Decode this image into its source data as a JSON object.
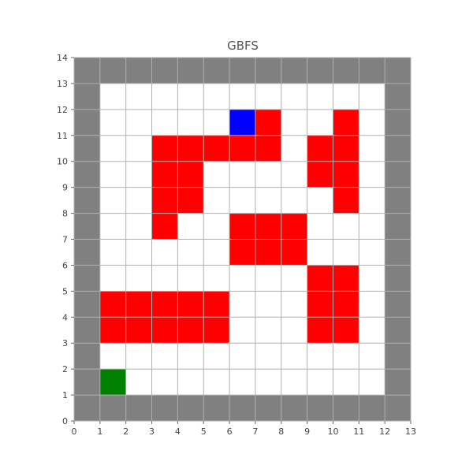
{
  "title": "GBFS",
  "grid": {
    "width": 13,
    "height": 14
  },
  "axes": {
    "x_ticks": [
      "0",
      "1",
      "2",
      "3",
      "4",
      "5",
      "6",
      "7",
      "8",
      "9",
      "10",
      "11",
      "12",
      "13"
    ],
    "y_ticks": [
      "0",
      "1",
      "2",
      "3",
      "4",
      "5",
      "6",
      "7",
      "8",
      "9",
      "10",
      "11",
      "12",
      "13",
      "14"
    ]
  },
  "colors": {
    "background": "#ffffff",
    "free": "#ffffff",
    "wall": "#808080",
    "explored": "#ff0000",
    "start": "#008000",
    "goal": "#0000ff",
    "gridline": "#b0b0b0"
  },
  "cells": {
    "start": [
      1,
      1
    ],
    "goal": [
      6,
      11
    ],
    "explored": [
      [
        1,
        3
      ],
      [
        2,
        3
      ],
      [
        3,
        3
      ],
      [
        4,
        3
      ],
      [
        5,
        3
      ],
      [
        1,
        4
      ],
      [
        2,
        4
      ],
      [
        3,
        4
      ],
      [
        4,
        4
      ],
      [
        5,
        4
      ],
      [
        9,
        3
      ],
      [
        10,
        3
      ],
      [
        9,
        4
      ],
      [
        10,
        4
      ],
      [
        9,
        5
      ],
      [
        10,
        5
      ],
      [
        6,
        6
      ],
      [
        7,
        6
      ],
      [
        8,
        6
      ],
      [
        6,
        7
      ],
      [
        7,
        7
      ],
      [
        8,
        7
      ],
      [
        3,
        7
      ],
      [
        3,
        8
      ],
      [
        4,
        8
      ],
      [
        3,
        9
      ],
      [
        4,
        9
      ],
      [
        3,
        10
      ],
      [
        4,
        10
      ],
      [
        5,
        10
      ],
      [
        6,
        10
      ],
      [
        7,
        10
      ],
      [
        9,
        9
      ],
      [
        10,
        9
      ],
      [
        9,
        10
      ],
      [
        10,
        10
      ],
      [
        10,
        8
      ],
      [
        7,
        11
      ],
      [
        10,
        11
      ]
    ]
  }
}
